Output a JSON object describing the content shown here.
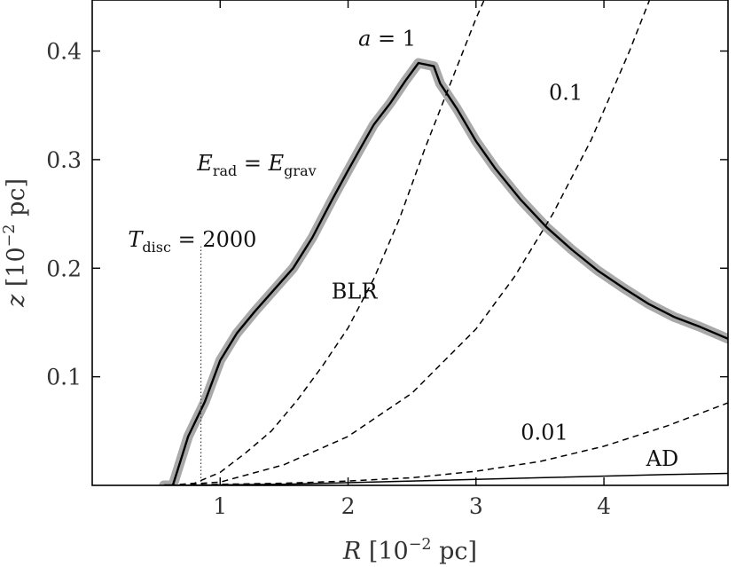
{
  "chart_data": {
    "type": "line",
    "xlabel": {
      "var": "R",
      "unit_open": "[10",
      "exp": "−2",
      "unit_close": " pc]"
    },
    "ylabel": {
      "var": "z",
      "unit_open": "[10",
      "exp": "−2",
      "unit_close": " pc]"
    },
    "xlim": [
      0.0,
      4.97
    ],
    "ylim": [
      0.0,
      0.447
    ],
    "xticks": [
      1,
      2,
      3,
      4
    ],
    "xtick_labels": [
      "1",
      "2",
      "3",
      "4"
    ],
    "yticks": [
      0.1,
      0.2,
      0.3,
      0.4
    ],
    "ytick_labels": [
      "0.1",
      "0.2",
      "0.3",
      "0.4"
    ],
    "grid": false,
    "series": [
      {
        "name": "E_rad = E_grav",
        "style": "solid-with-gray-halo",
        "color": "#000000",
        "halo_color": "#a9a9a9",
        "x": [
          0.56,
          0.63,
          0.75,
          0.88,
          1.0,
          1.13,
          1.27,
          1.42,
          1.57,
          1.72,
          1.87,
          2.0,
          2.08,
          2.2,
          2.33,
          2.45,
          2.55,
          2.67,
          2.72,
          2.85,
          3.0,
          3.15,
          3.35,
          3.55,
          3.75,
          3.95,
          4.15,
          4.35,
          4.55,
          4.75,
          4.97
        ],
        "y": [
          0.0,
          0.0,
          0.045,
          0.077,
          0.115,
          0.14,
          0.16,
          0.18,
          0.2,
          0.228,
          0.262,
          0.29,
          0.307,
          0.332,
          0.352,
          0.373,
          0.389,
          0.386,
          0.37,
          0.347,
          0.317,
          0.292,
          0.263,
          0.238,
          0.217,
          0.198,
          0.182,
          0.167,
          0.155,
          0.146,
          0.135
        ]
      },
      {
        "name": "a = 1",
        "style": "dashed",
        "color": "#000000",
        "x": [
          0.6,
          0.8,
          1.0,
          1.2,
          1.4,
          1.6,
          1.8,
          2.0,
          2.2,
          2.4,
          2.6,
          2.8,
          3.0,
          3.15
        ],
        "y": [
          0.0,
          0.002,
          0.012,
          0.03,
          0.05,
          0.078,
          0.11,
          0.145,
          0.19,
          0.245,
          0.31,
          0.37,
          0.43,
          0.47
        ]
      },
      {
        "name": "0.1",
        "style": "dashed",
        "color": "#000000",
        "x": [
          0.6,
          1.0,
          1.5,
          2.0,
          2.5,
          3.0,
          3.3,
          3.6,
          3.9,
          4.2,
          4.5
        ],
        "y": [
          0.0,
          0.003,
          0.019,
          0.045,
          0.085,
          0.144,
          0.192,
          0.25,
          0.318,
          0.4,
          0.49
        ]
      },
      {
        "name": "0.01",
        "style": "dashed",
        "color": "#000000",
        "x": [
          0.6,
          1.0,
          1.5,
          2.0,
          2.5,
          3.0,
          3.5,
          4.0,
          4.5,
          4.97
        ],
        "y": [
          0.0,
          0.001,
          0.002,
          0.004,
          0.007,
          0.013,
          0.022,
          0.036,
          0.055,
          0.076
        ]
      },
      {
        "name": "AD",
        "style": "solid-thin",
        "color": "#000000",
        "x": [
          0.6,
          1.5,
          2.5,
          3.5,
          4.5,
          4.97
        ],
        "y": [
          0.0,
          0.001,
          0.004,
          0.007,
          0.01,
          0.011
        ]
      },
      {
        "name": "T_disc = 2000",
        "style": "dotted",
        "color": "#444444",
        "x": [
          0.85,
          0.85
        ],
        "y": [
          0.0,
          0.22
        ]
      }
    ],
    "annotations": [
      {
        "id": "a1",
        "parts": [
          [
            "a",
            "it"
          ],
          [
            " = 1",
            ""
          ]
        ],
        "x": 2.08,
        "y": 0.405
      },
      {
        "id": "a01",
        "parts": [
          [
            "0.1",
            ""
          ]
        ],
        "x": 3.57,
        "y": 0.355
      },
      {
        "id": "erad",
        "parts": [
          [
            "E",
            "it"
          ],
          [
            "rad",
            "sub"
          ],
          [
            " = ",
            ""
          ],
          [
            "E",
            "it"
          ],
          [
            "grav",
            "sub"
          ]
        ],
        "x": 0.82,
        "y": 0.29
      },
      {
        "id": "tdisc",
        "parts": [
          [
            "T",
            "it"
          ],
          [
            "disc",
            "sub"
          ],
          [
            " = 2000",
            ""
          ]
        ],
        "x": 0.28,
        "y": 0.22
      },
      {
        "id": "blr",
        "parts": [
          [
            "BLR",
            ""
          ]
        ],
        "x": 1.87,
        "y": 0.172
      },
      {
        "id": "a001",
        "parts": [
          [
            "0.01",
            ""
          ]
        ],
        "x": 3.35,
        "y": 0.042
      },
      {
        "id": "ad",
        "parts": [
          [
            "AD",
            ""
          ]
        ],
        "x": 4.33,
        "y": 0.018
      }
    ]
  }
}
